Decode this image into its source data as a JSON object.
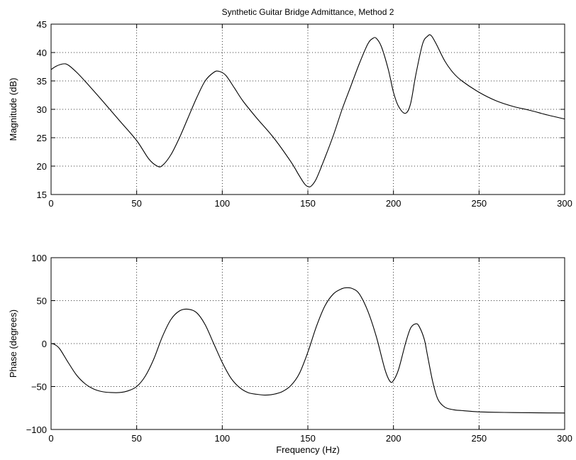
{
  "title": "Synthetic Guitar Bridge Admittance, Method 2",
  "chart_data": [
    {
      "type": "line",
      "title": "Synthetic Guitar Bridge Admittance, Method 2",
      "xlabel": "",
      "ylabel": "Magnitude (dB)",
      "xlim": [
        0,
        300
      ],
      "ylim": [
        15,
        45
      ],
      "xticks": [
        0,
        50,
        100,
        150,
        200,
        250,
        300
      ],
      "yticks": [
        15,
        20,
        25,
        30,
        35,
        40,
        45
      ],
      "grid": true,
      "series": [
        {
          "color": "#000000",
          "x": [
            0,
            3,
            7,
            10,
            15,
            20,
            30,
            40,
            50,
            57,
            62,
            65,
            70,
            75,
            80,
            85,
            90,
            95,
            98,
            102,
            107,
            112,
            120,
            130,
            140,
            145,
            148,
            150,
            152,
            155,
            160,
            165,
            170,
            175,
            180,
            185,
            188,
            190,
            193,
            197,
            200,
            203,
            207,
            210,
            213,
            217,
            220,
            222,
            225,
            230,
            235,
            240,
            250,
            260,
            270,
            280,
            290,
            300
          ],
          "y": [
            37.0,
            37.6,
            38.0,
            37.8,
            36.5,
            34.9,
            31.5,
            28.0,
            24.5,
            21.3,
            20.0,
            20.1,
            22.0,
            25.0,
            28.5,
            32.0,
            35.0,
            36.5,
            36.7,
            36.0,
            33.8,
            31.5,
            28.5,
            25.0,
            20.8,
            18.3,
            16.9,
            16.4,
            16.5,
            17.8,
            21.5,
            25.5,
            30.0,
            34.0,
            38.0,
            41.5,
            42.5,
            42.5,
            41.0,
            37.0,
            33.0,
            30.5,
            29.3,
            31.0,
            36.0,
            41.5,
            42.9,
            43.0,
            41.5,
            38.5,
            36.4,
            35.0,
            33.0,
            31.5,
            30.5,
            29.8,
            29.0,
            28.3
          ]
        }
      ]
    },
    {
      "type": "line",
      "title": "",
      "xlabel": "Frequency (Hz)",
      "ylabel": "Phase (degrees)",
      "xlim": [
        0,
        300
      ],
      "ylim": [
        -100,
        100
      ],
      "xticks": [
        0,
        50,
        100,
        150,
        200,
        250,
        300
      ],
      "yticks": [
        -100,
        -50,
        0,
        50,
        100
      ],
      "grid": true,
      "series": [
        {
          "color": "#000000",
          "x": [
            0,
            2,
            5,
            10,
            15,
            20,
            25,
            30,
            35,
            40,
            45,
            50,
            55,
            60,
            65,
            70,
            75,
            80,
            85,
            90,
            95,
            100,
            105,
            110,
            115,
            120,
            125,
            130,
            135,
            140,
            145,
            150,
            155,
            160,
            165,
            170,
            173,
            176,
            180,
            185,
            190,
            195,
            198,
            200,
            203,
            207,
            210,
            213,
            215,
            218,
            220,
            223,
            226,
            230,
            235,
            240,
            250,
            260,
            270,
            280,
            290,
            300
          ],
          "y": [
            0,
            -1,
            -6,
            -22,
            -37,
            -47,
            -53,
            -56,
            -57,
            -57,
            -55,
            -50,
            -38,
            -18,
            8,
            28,
            38,
            40,
            36,
            22,
            0,
            -22,
            -40,
            -51,
            -57,
            -59,
            -60,
            -59,
            -56,
            -49,
            -35,
            -10,
            20,
            44,
            58,
            64,
            65,
            64,
            58,
            38,
            8,
            -30,
            -44,
            -43,
            -30,
            0,
            18,
            23,
            20,
            5,
            -15,
            -45,
            -65,
            -74,
            -77,
            -78,
            -79.5,
            -80,
            -80.3,
            -80.5,
            -80.7,
            -80.8
          ]
        }
      ]
    }
  ]
}
